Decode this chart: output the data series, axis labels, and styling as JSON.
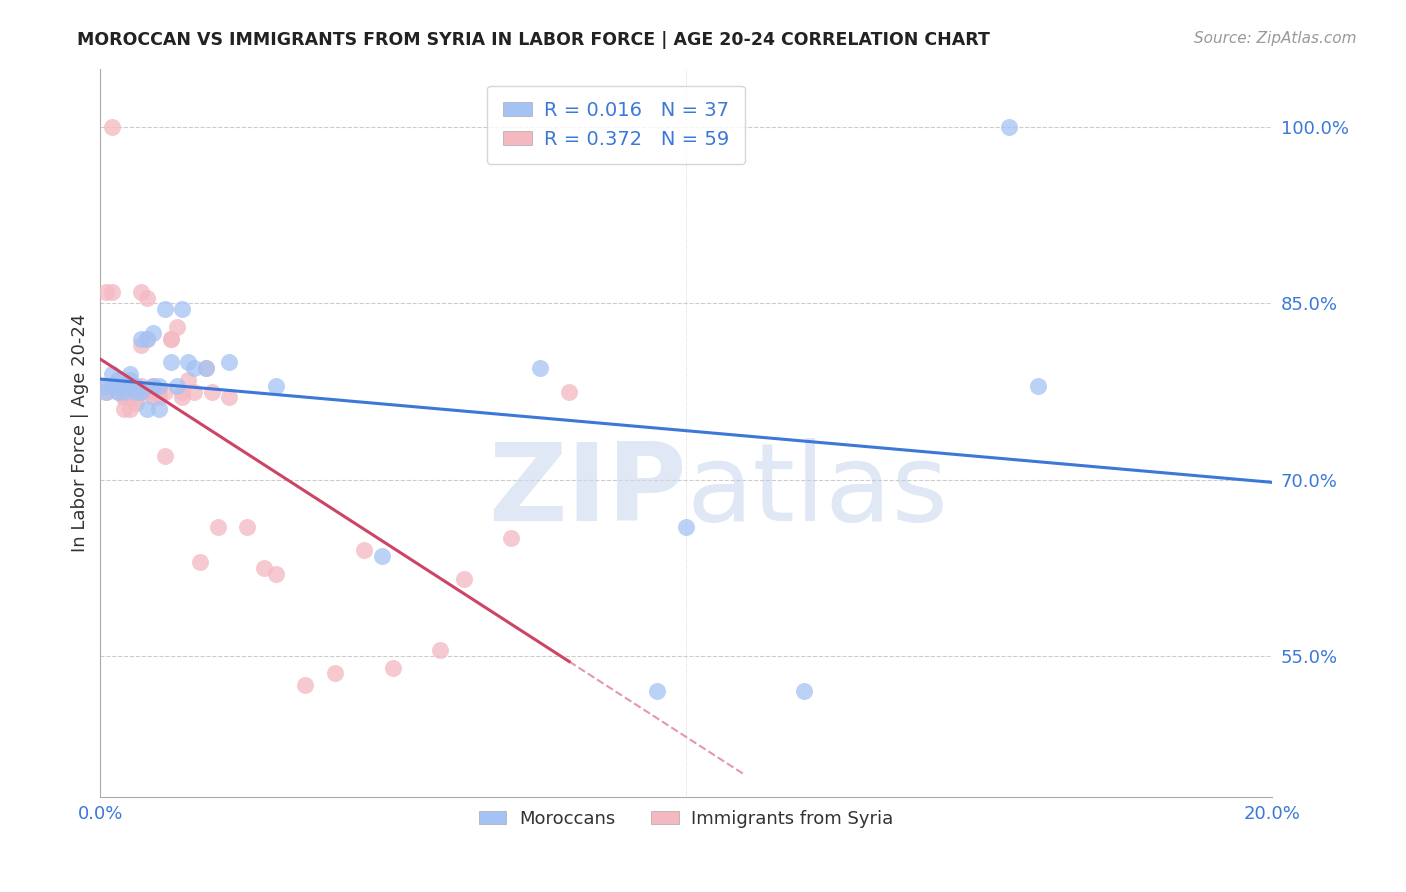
{
  "title": "MOROCCAN VS IMMIGRANTS FROM SYRIA IN LABOR FORCE | AGE 20-24 CORRELATION CHART",
  "source": "Source: ZipAtlas.com",
  "ylabel": "In Labor Force | Age 20-24",
  "legend_r1": "R = 0.016",
  "legend_n1": "N = 37",
  "legend_r2": "R = 0.372",
  "legend_n2": "N = 59",
  "blue_color": "#a4c2f4",
  "pink_color": "#f4b8c1",
  "blue_line_color": "#3c78d8",
  "pink_line_color": "#cc4466",
  "xmin": 0.0,
  "xmax": 0.2,
  "ymin": 0.43,
  "ymax": 1.05,
  "yticks": [
    0.55,
    0.7,
    0.85,
    1.0
  ],
  "ytick_labels": [
    "55.0%",
    "70.0%",
    "85.0%",
    "100.0%"
  ],
  "moroccans_x": [
    0.001,
    0.001,
    0.002,
    0.002,
    0.003,
    0.003,
    0.004,
    0.004,
    0.005,
    0.005,
    0.005,
    0.006,
    0.006,
    0.007,
    0.007,
    0.008,
    0.008,
    0.009,
    0.009,
    0.01,
    0.01,
    0.011,
    0.012,
    0.013,
    0.014,
    0.015,
    0.016,
    0.018,
    0.022,
    0.03,
    0.048,
    0.075,
    0.095,
    0.155,
    0.16,
    0.1,
    0.12
  ],
  "moroccans_y": [
    0.775,
    0.78,
    0.78,
    0.79,
    0.775,
    0.785,
    0.78,
    0.775,
    0.78,
    0.785,
    0.79,
    0.775,
    0.78,
    0.82,
    0.775,
    0.82,
    0.76,
    0.78,
    0.825,
    0.76,
    0.78,
    0.845,
    0.8,
    0.78,
    0.845,
    0.8,
    0.795,
    0.795,
    0.8,
    0.78,
    0.635,
    0.795,
    0.52,
    1.0,
    0.78,
    0.66,
    0.52
  ],
  "syria_x": [
    0.001,
    0.001,
    0.001,
    0.002,
    0.002,
    0.002,
    0.003,
    0.003,
    0.003,
    0.003,
    0.004,
    0.004,
    0.004,
    0.004,
    0.004,
    0.005,
    0.005,
    0.005,
    0.005,
    0.005,
    0.006,
    0.006,
    0.006,
    0.007,
    0.007,
    0.007,
    0.008,
    0.008,
    0.008,
    0.009,
    0.009,
    0.009,
    0.01,
    0.01,
    0.011,
    0.011,
    0.012,
    0.012,
    0.013,
    0.014,
    0.014,
    0.015,
    0.016,
    0.017,
    0.018,
    0.019,
    0.02,
    0.022,
    0.025,
    0.028,
    0.03,
    0.035,
    0.04,
    0.045,
    0.05,
    0.058,
    0.062,
    0.07,
    0.08
  ],
  "syria_y": [
    0.775,
    0.78,
    0.86,
    0.78,
    0.86,
    1.0,
    0.775,
    0.78,
    0.785,
    0.78,
    0.77,
    0.775,
    0.78,
    0.77,
    0.76,
    0.775,
    0.78,
    0.775,
    0.76,
    0.77,
    0.775,
    0.765,
    0.77,
    0.78,
    0.815,
    0.86,
    0.775,
    0.82,
    0.855,
    0.77,
    0.775,
    0.78,
    0.775,
    0.77,
    0.72,
    0.775,
    0.82,
    0.82,
    0.83,
    0.77,
    0.775,
    0.785,
    0.775,
    0.63,
    0.795,
    0.775,
    0.66,
    0.77,
    0.66,
    0.625,
    0.62,
    0.525,
    0.535,
    0.64,
    0.54,
    0.555,
    0.615,
    0.65,
    0.775
  ]
}
